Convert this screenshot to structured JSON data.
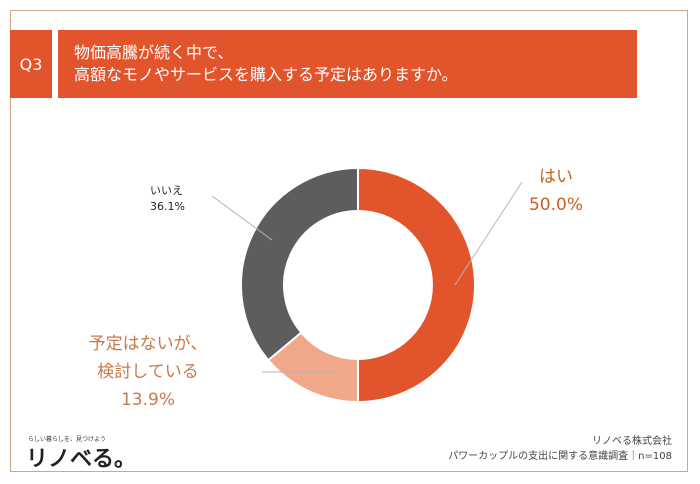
{
  "question": {
    "number": "Q3",
    "line1": "物価高騰が続く中で、",
    "line2": "高額なモノやサービスを購入する予定はありますか。"
  },
  "chart_data": {
    "type": "pie",
    "variant": "donut",
    "slices": [
      {
        "label": "はい",
        "label_lines": [
          "はい"
        ],
        "value": 50.0,
        "display": "50.0%",
        "color": "#e2552c",
        "label_color": "#c9601f"
      },
      {
        "label": "予定はないが、検討している",
        "label_lines": [
          "予定はないが、",
          "検討している"
        ],
        "value": 13.9,
        "display": "13.9%",
        "color": "#f0a78a",
        "label_color": "#c97a4a"
      },
      {
        "label": "いいえ",
        "label_lines": [
          "いいえ"
        ],
        "value": 36.1,
        "display": "36.1%",
        "color": "#5d5d5d",
        "label_color": "#222222"
      }
    ]
  },
  "footer": {
    "logo_tagline": "らしい暮らしを、見つけよう",
    "logo": "リノベる。",
    "company": "リノベる株式会社",
    "survey": "パワーカップルの支出に関する意識調査｜n=108"
  }
}
